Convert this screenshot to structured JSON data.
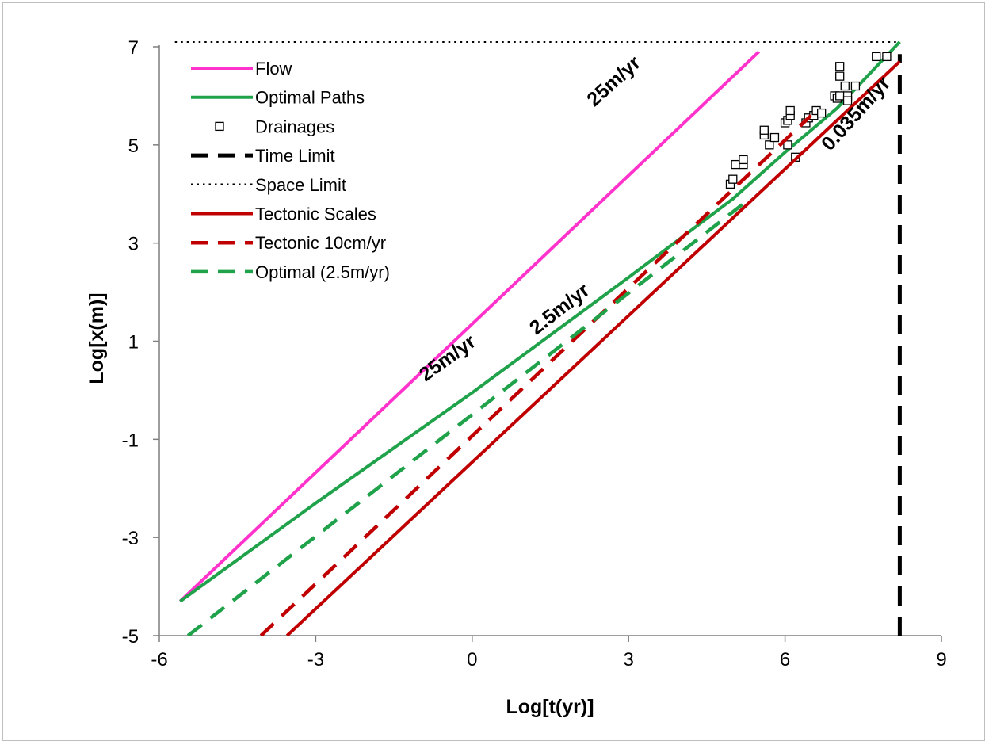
{
  "chart_data": {
    "type": "line",
    "title": "",
    "xlabel": "Log[t(yr)]",
    "ylabel": "Log[x(m)]",
    "xlim": [
      -6,
      9
    ],
    "ylim": [
      -5,
      7
    ],
    "xticks": [
      -6,
      -3,
      0,
      3,
      6,
      9
    ],
    "yticks": [
      -5,
      -3,
      -1,
      1,
      3,
      5,
      7
    ],
    "grid": false,
    "legend_position": "top-left",
    "series": [
      {
        "name": "Flow",
        "style": "solid",
        "color": "#ff33cc",
        "x": [
          -5.6,
          5.5
        ],
        "y": [
          -4.3,
          6.9
        ]
      },
      {
        "name": "Optimal Paths",
        "style": "solid",
        "color": "#1fa24a",
        "x": [
          -5.6,
          -3,
          0,
          3,
          5,
          6,
          7,
          8.2
        ],
        "y": [
          -4.3,
          -2.3,
          -0.05,
          2.3,
          3.9,
          4.85,
          5.75,
          7.1
        ]
      },
      {
        "name": "Drainages",
        "style": "marker",
        "color": "#000000",
        "x": [
          4.95,
          5.0,
          5.05,
          5.2,
          5.2,
          5.6,
          5.6,
          5.7,
          5.8,
          6.0,
          6.05,
          6.05,
          6.1,
          6.1,
          6.2,
          6.4,
          6.45,
          6.55,
          6.6,
          6.7,
          6.95,
          7.0,
          7.05,
          7.05,
          7.05,
          7.15,
          7.2,
          7.2,
          7.35,
          7.75,
          7.95
        ],
        "y": [
          4.2,
          4.3,
          4.6,
          4.6,
          4.7,
          5.2,
          5.3,
          5.0,
          5.15,
          5.45,
          5.0,
          5.5,
          5.6,
          5.7,
          4.75,
          5.45,
          5.55,
          5.6,
          5.7,
          5.65,
          6.0,
          5.95,
          6.4,
          6.0,
          6.6,
          6.2,
          6.0,
          5.9,
          6.2,
          6.8,
          6.8
        ]
      },
      {
        "name": "Time Limit",
        "style": "dash",
        "color": "#000000",
        "x": [
          8.2,
          8.2
        ],
        "y": [
          -5,
          6.85
        ]
      },
      {
        "name": "Space Limit",
        "style": "dot",
        "color": "#000000",
        "x": [
          -5.7,
          8.2
        ],
        "y": [
          7.1,
          7.1
        ]
      },
      {
        "name": "Tectonic Scales",
        "style": "solid",
        "color": "#c00000",
        "x": [
          -3.55,
          8.2
        ],
        "y": [
          -5,
          6.7
        ]
      },
      {
        "name": "Tectonic 10cm/yr",
        "style": "dash",
        "color": "#c00000",
        "x": [
          -4.05,
          6.5
        ],
        "y": [
          -5,
          5.6
        ]
      },
      {
        "name": "Optimal (2.5m/yr)",
        "style": "dash",
        "color": "#1fa24a",
        "x": [
          -5.45,
          5.2
        ],
        "y": [
          -5,
          3.8
        ]
      }
    ],
    "annotations": [
      {
        "text": "25m/yr",
        "x": 2.8,
        "y": 6.2,
        "angle": -42
      },
      {
        "text": "25m/yr",
        "x": -0.4,
        "y": 0.55,
        "angle": -36
      },
      {
        "text": "2.5m/yr",
        "x": 1.75,
        "y": 1.55,
        "angle": -38
      },
      {
        "text": "0.035m/yr",
        "x": 7.45,
        "y": 5.55,
        "angle": -48
      }
    ]
  }
}
